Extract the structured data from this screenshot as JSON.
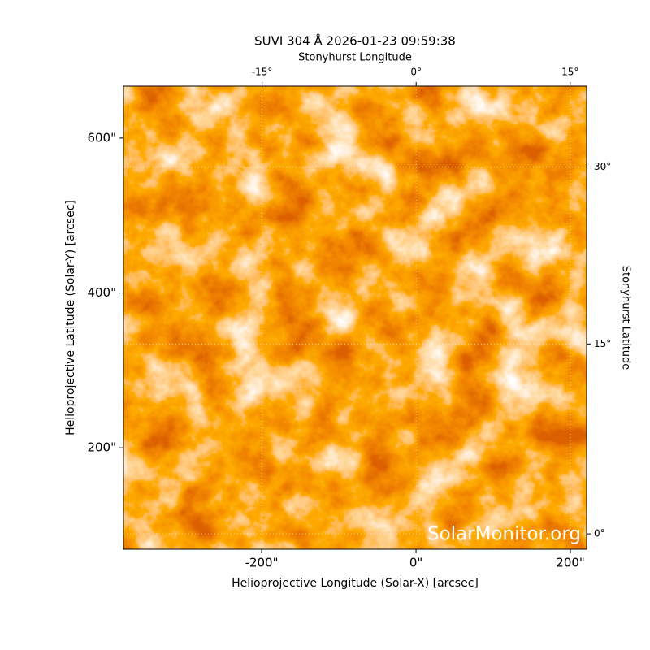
{
  "chart_data": {
    "type": "image",
    "title": "SUVI 304 Å 2026-01-23 09:59:38",
    "xlabel": "Helioprojective Longitude (Solar-X) [arcsec]",
    "ylabel": "Helioprojective Latitude (Solar-Y) [arcsec]",
    "x2label": "Stonyhurst Longitude",
    "y2label": "Stonyhurst Latitude",
    "annotation": "SolarMonitor.org",
    "xlim": [
      -379,
      221
    ],
    "ylim": [
      69,
      667
    ],
    "xticks": [
      {
        "value": -200,
        "label": "-200\""
      },
      {
        "value": 0,
        "label": "0\""
      },
      {
        "value": 200,
        "label": "200\""
      }
    ],
    "yticks": [
      {
        "value": 200,
        "label": "200\""
      },
      {
        "value": 400,
        "label": "400\""
      },
      {
        "value": 600,
        "label": "600\""
      }
    ],
    "x2lim": [
      -28.5,
      16.6
    ],
    "x2ticks": [
      {
        "value": -15,
        "label": "-15°"
      },
      {
        "value": 0,
        "label": "0°"
      },
      {
        "value": 15,
        "label": "15°"
      }
    ],
    "y2lim": [
      -1.2,
      37.6
    ],
    "y2ticks": [
      {
        "value": 0,
        "label": "0°"
      },
      {
        "value": 15,
        "label": "15°"
      },
      {
        "value": 30,
        "label": "30°"
      }
    ],
    "grid": true
  }
}
